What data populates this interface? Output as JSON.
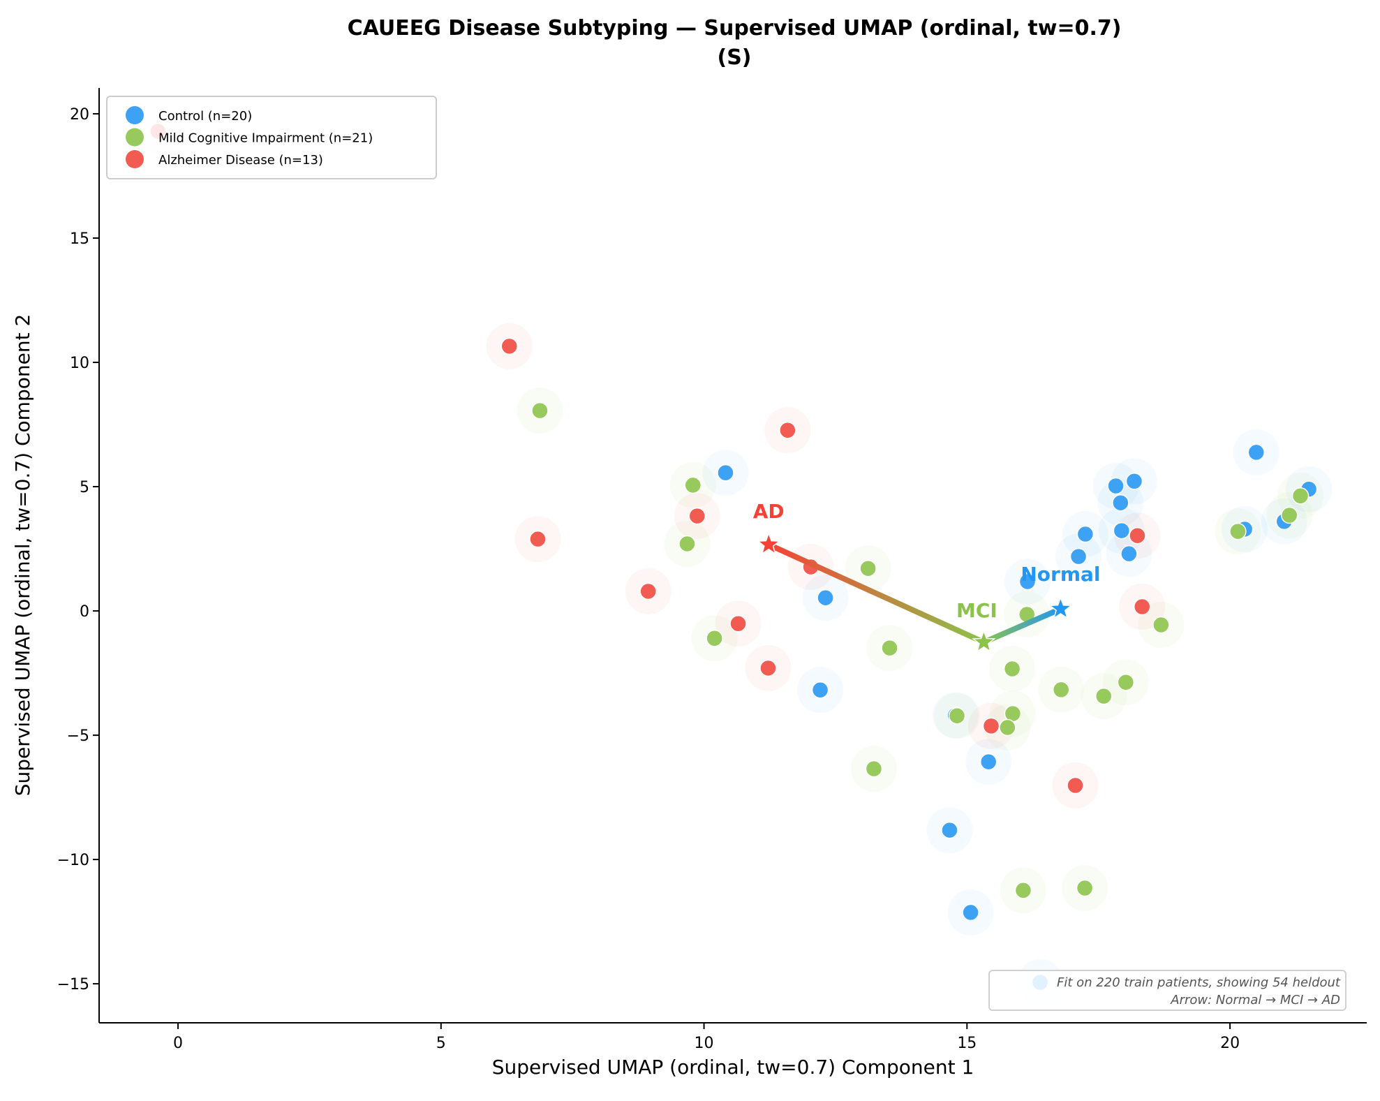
{
  "chart_data": {
    "type": "scatter",
    "title": "CAUEEG Disease Subtyping — Supervised UMAP (ordinal, tw=0.7)",
    "subtitle": "(S)",
    "xlabel": "Supervised UMAP (ordinal, tw=0.7) Component 1",
    "ylabel": "Supervised UMAP (ordinal, tw=0.7) Component 2",
    "xlim": [
      -1.5,
      22.6
    ],
    "ylim": [
      -16.57,
      21.04
    ],
    "xticks": [
      0,
      5,
      10,
      15,
      20
    ],
    "yticks": [
      -15,
      -10,
      -5,
      0,
      5,
      10,
      15,
      20
    ],
    "grid": false,
    "legend_position": "top-left",
    "series": [
      {
        "name": "Control (n=20)",
        "color": "#3DA2F4",
        "points": [
          [
            20.5,
            6.38
          ],
          [
            21.5,
            4.9
          ],
          [
            21.03,
            3.6
          ],
          [
            20.28,
            3.29
          ],
          [
            17.83,
            5.03
          ],
          [
            18.18,
            5.22
          ],
          [
            17.92,
            4.35
          ],
          [
            17.25,
            3.09
          ],
          [
            17.94,
            3.23
          ],
          [
            17.12,
            2.19
          ],
          [
            18.08,
            2.3
          ],
          [
            16.15,
            1.18
          ],
          [
            10.41,
            5.56
          ],
          [
            12.31,
            0.53
          ],
          [
            12.21,
            -3.18
          ],
          [
            14.78,
            -4.2
          ],
          [
            15.41,
            -6.07
          ],
          [
            14.67,
            -8.82
          ],
          [
            15.07,
            -12.13
          ],
          [
            16.39,
            -14.94
          ]
        ]
      },
      {
        "name": "Mild Cognitive Impairment (n=21)",
        "color": "#97C95C",
        "points": [
          [
            21.34,
            4.63
          ],
          [
            21.13,
            3.85
          ],
          [
            20.15,
            3.2
          ],
          [
            18.69,
            -0.56
          ],
          [
            16.14,
            -0.14
          ],
          [
            15.86,
            -2.33
          ],
          [
            14.81,
            -4.22
          ],
          [
            15.87,
            -4.13
          ],
          [
            15.77,
            -4.69
          ],
          [
            13.23,
            -6.35
          ],
          [
            13.53,
            -1.49
          ],
          [
            16.79,
            -3.17
          ],
          [
            17.6,
            -3.43
          ],
          [
            18.02,
            -2.87
          ],
          [
            16.07,
            -11.24
          ],
          [
            17.24,
            -11.15
          ],
          [
            6.88,
            8.06
          ],
          [
            9.79,
            5.06
          ],
          [
            9.68,
            2.7
          ],
          [
            13.12,
            1.71
          ],
          [
            10.2,
            -1.1
          ]
        ]
      },
      {
        "name": "Alzheimer Disease (n=13)",
        "color": "#F25B51",
        "points": [
          [
            18.24,
            3.03
          ],
          [
            18.33,
            0.17
          ],
          [
            15.46,
            -4.63
          ],
          [
            17.06,
            -7.02
          ],
          [
            10.65,
            -0.51
          ],
          [
            11.22,
            -2.3
          ],
          [
            6.3,
            10.65
          ],
          [
            11.59,
            7.27
          ],
          [
            9.87,
            3.82
          ],
          [
            6.84,
            2.89
          ],
          [
            8.94,
            0.79
          ],
          [
            12.03,
            1.77
          ],
          [
            -0.38,
            19.3
          ]
        ]
      }
    ],
    "centroids": [
      {
        "label": "Normal",
        "x": 16.78,
        "y": 0.08,
        "color": "#2196F3"
      },
      {
        "label": "MCI",
        "x": 15.32,
        "y": -1.26,
        "color": "#8BC34A"
      },
      {
        "label": "AD",
        "x": 11.23,
        "y": 2.67,
        "color": "#F44336"
      }
    ],
    "arrow_path": [
      "Normal",
      "MCI",
      "AD"
    ],
    "annotation": [
      "Fit on 220 train patients, showing 54 heldout",
      "Arrow: Normal → MCI → AD"
    ]
  }
}
